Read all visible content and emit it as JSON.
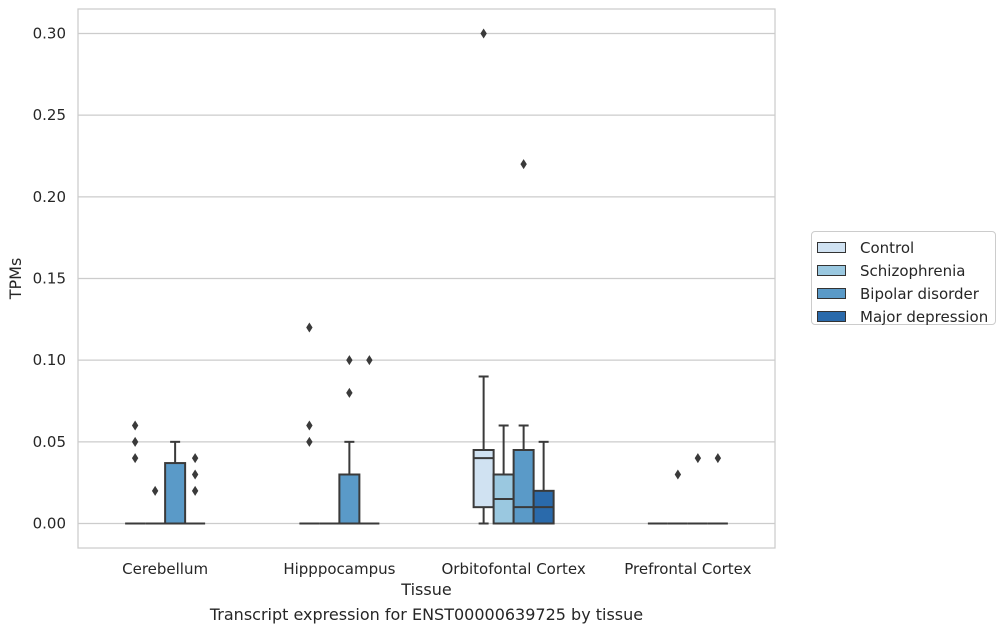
{
  "caption": "Transcript expression for ENST00000639725 by tissue",
  "chart_data": {
    "type": "box",
    "xlabel": "Tissue",
    "ylabel": "TPMs",
    "ylim": [
      -0.015,
      0.315
    ],
    "yticks": [
      "0.00",
      "0.05",
      "0.10",
      "0.15",
      "0.20",
      "0.25",
      "0.30"
    ],
    "grid": true,
    "legend_position": "right",
    "categories": [
      "Cerebellum",
      "Hipppocampus",
      "Orbitofontal Cortex",
      "Prefrontal Cortex"
    ],
    "series": [
      {
        "name": "Control",
        "color": "#d0e2f2",
        "boxes": [
          {
            "category": 0,
            "q1": 0,
            "median": 0,
            "q3": 0,
            "whisker_low": 0,
            "whisker_high": 0,
            "outliers": [
              0.04,
              0.05,
              0.06
            ]
          },
          {
            "category": 1,
            "q1": 0,
            "median": 0,
            "q3": 0,
            "whisker_low": 0,
            "whisker_high": 0,
            "outliers": [
              0.05,
              0.06,
              0.12
            ]
          },
          {
            "category": 2,
            "q1": 0.01,
            "median": 0.04,
            "q3": 0.045,
            "whisker_low": 0,
            "whisker_high": 0.09,
            "outliers": [
              0.3
            ]
          },
          {
            "category": 3,
            "q1": 0,
            "median": 0,
            "q3": 0,
            "whisker_low": 0,
            "whisker_high": 0,
            "outliers": []
          }
        ]
      },
      {
        "name": "Schizophrenia",
        "color": "#9ac8e0",
        "boxes": [
          {
            "category": 0,
            "q1": 0,
            "median": 0,
            "q3": 0,
            "whisker_low": 0,
            "whisker_high": 0,
            "outliers": [
              0.02
            ]
          },
          {
            "category": 1,
            "q1": 0,
            "median": 0,
            "q3": 0,
            "whisker_low": 0,
            "whisker_high": 0,
            "outliers": []
          },
          {
            "category": 2,
            "q1": 0,
            "median": 0.015,
            "q3": 0.03,
            "whisker_low": 0,
            "whisker_high": 0.06,
            "outliers": []
          },
          {
            "category": 3,
            "q1": 0,
            "median": 0,
            "q3": 0,
            "whisker_low": 0,
            "whisker_high": 0,
            "outliers": [
              0.03
            ]
          }
        ]
      },
      {
        "name": "Bipolar disorder",
        "color": "#5a9ac8",
        "boxes": [
          {
            "category": 0,
            "q1": 0,
            "median": 0,
            "q3": 0.037,
            "whisker_low": 0,
            "whisker_high": 0.05,
            "outliers": []
          },
          {
            "category": 1,
            "q1": 0,
            "median": 0,
            "q3": 0.03,
            "whisker_low": 0,
            "whisker_high": 0.05,
            "outliers": [
              0.08,
              0.1
            ]
          },
          {
            "category": 2,
            "q1": 0,
            "median": 0.01,
            "q3": 0.045,
            "whisker_low": 0,
            "whisker_high": 0.06,
            "outliers": [
              0.22
            ]
          },
          {
            "category": 3,
            "q1": 0,
            "median": 0,
            "q3": 0,
            "whisker_low": 0,
            "whisker_high": 0,
            "outliers": [
              0.04
            ]
          }
        ]
      },
      {
        "name": "Major depression",
        "color": "#2a6aab",
        "boxes": [
          {
            "category": 0,
            "q1": 0,
            "median": 0,
            "q3": 0,
            "whisker_low": 0,
            "whisker_high": 0,
            "outliers": [
              0.02,
              0.03,
              0.04
            ]
          },
          {
            "category": 1,
            "q1": 0,
            "median": 0,
            "q3": 0,
            "whisker_low": 0,
            "whisker_high": 0,
            "outliers": [
              0.1
            ]
          },
          {
            "category": 2,
            "q1": 0,
            "median": 0.01,
            "q3": 0.02,
            "whisker_low": 0,
            "whisker_high": 0.05,
            "outliers": []
          },
          {
            "category": 3,
            "q1": 0,
            "median": 0,
            "q3": 0,
            "whisker_low": 0,
            "whisker_high": 0,
            "outliers": [
              0.04
            ]
          }
        ]
      }
    ]
  }
}
